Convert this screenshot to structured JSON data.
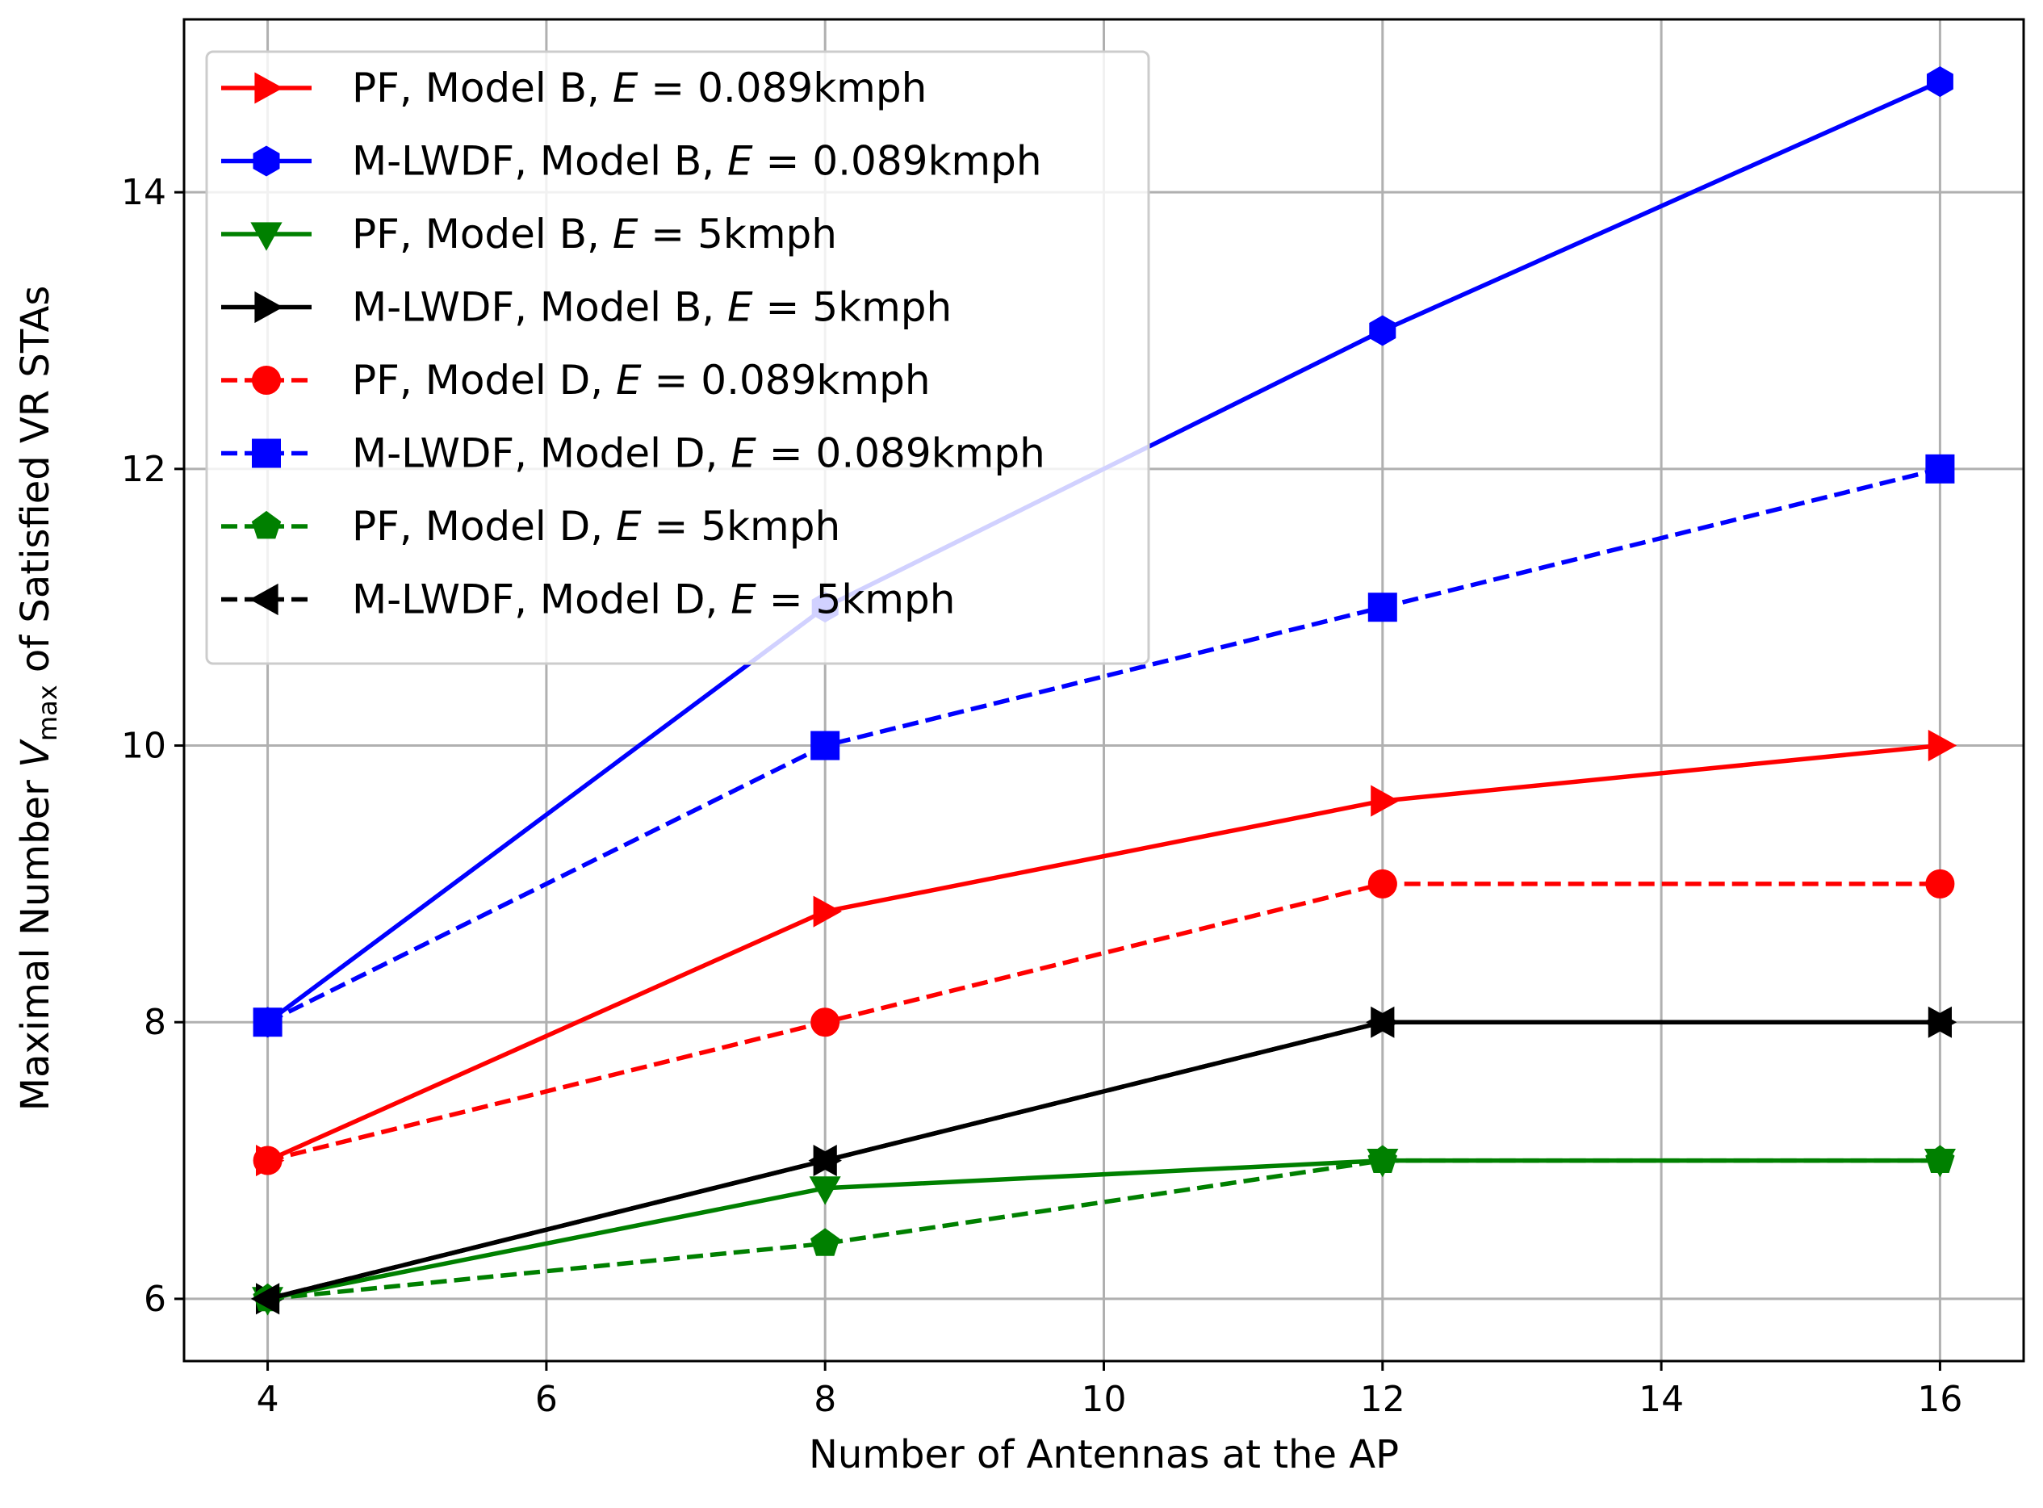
{
  "chart_data": {
    "type": "line",
    "title": "",
    "xlabel": "Number of Antennas at the AP",
    "ylabel": {
      "prefix": "Maximal Number ",
      "symbol": "V",
      "subscript": "max",
      "suffix": " of Satisfied VR STAs"
    },
    "xlim": [
      3.4,
      16.6
    ],
    "ylim": [
      5.55,
      15.25
    ],
    "xticks": [
      4,
      6,
      8,
      10,
      12,
      14,
      16
    ],
    "yticks": [
      6,
      8,
      10,
      12,
      14
    ],
    "grid": true,
    "legend_position": "top-left",
    "x": [
      4,
      8,
      12,
      16
    ],
    "series": [
      {
        "name_pre": "PF, Model B, ",
        "name_var": "E",
        "name_post": " = 0.089kmph",
        "color": "#ff0000",
        "dash": "solid",
        "marker": "triangle-right",
        "values": [
          7,
          8.8,
          9.6,
          10
        ]
      },
      {
        "name_pre": "M-LWDF, Model B, ",
        "name_var": "E",
        "name_post": " = 0.089kmph",
        "color": "#0000ff",
        "dash": "solid",
        "marker": "hexagon",
        "values": [
          8,
          11,
          13,
          14.8
        ]
      },
      {
        "name_pre": "PF, Model B, ",
        "name_var": "E",
        "name_post": " = 5kmph",
        "color": "#008000",
        "dash": "solid",
        "marker": "triangle-down",
        "values": [
          6,
          6.8,
          7,
          7
        ]
      },
      {
        "name_pre": "M-LWDF, Model B, ",
        "name_var": "E",
        "name_post": " = 5kmph",
        "color": "#000000",
        "dash": "solid",
        "marker": "triangle-right",
        "values": [
          6,
          7,
          8,
          8
        ]
      },
      {
        "name_pre": "PF, Model D, ",
        "name_var": "E",
        "name_post": " = 0.089kmph",
        "color": "#ff0000",
        "dash": "dashed",
        "marker": "circle",
        "values": [
          7,
          8,
          9,
          9
        ]
      },
      {
        "name_pre": "M-LWDF, Model D, ",
        "name_var": "E",
        "name_post": " = 0.089kmph",
        "color": "#0000ff",
        "dash": "dashed",
        "marker": "square",
        "values": [
          8,
          10,
          11,
          12
        ]
      },
      {
        "name_pre": "PF, Model D, ",
        "name_var": "E",
        "name_post": " = 5kmph",
        "color": "#008000",
        "dash": "dashed",
        "marker": "pentagon",
        "values": [
          6,
          6.4,
          7,
          7
        ]
      },
      {
        "name_pre": "M-LWDF, Model D, ",
        "name_var": "E",
        "name_post": " = 5kmph",
        "color": "#000000",
        "dash": "dashed",
        "marker": "triangle-left",
        "values": [
          6,
          7,
          8,
          8
        ]
      }
    ]
  }
}
